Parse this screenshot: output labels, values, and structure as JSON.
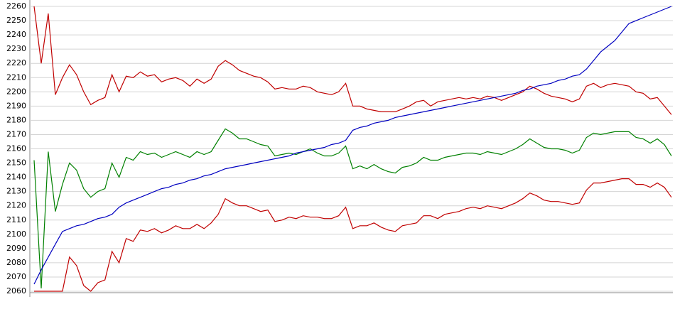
{
  "chart_data": {
    "type": "line",
    "x": [
      0,
      1,
      2,
      3,
      4,
      5,
      6,
      7,
      8,
      9,
      10,
      11,
      12,
      13,
      14,
      15,
      16,
      17,
      18,
      19,
      20,
      21,
      22,
      23,
      24,
      25,
      26,
      27,
      28,
      29,
      30,
      31,
      32,
      33,
      34,
      35,
      36,
      37,
      38,
      39,
      40,
      41,
      42,
      43,
      44,
      45,
      46,
      47,
      48,
      49,
      50,
      51,
      52,
      53,
      54,
      55,
      56,
      57,
      58,
      59,
      60,
      61,
      62,
      63,
      64,
      65,
      66,
      67,
      68,
      69,
      70,
      71,
      72,
      73,
      74,
      75,
      76,
      77,
      78,
      79,
      80,
      81,
      82,
      83,
      84,
      85,
      86,
      87,
      88,
      89,
      90
    ],
    "xlim": [
      0,
      90
    ],
    "ylim": [
      2060,
      2260
    ],
    "yticks": [
      2060,
      2070,
      2080,
      2090,
      2100,
      2110,
      2120,
      2130,
      2140,
      2150,
      2160,
      2170,
      2180,
      2190,
      2200,
      2210,
      2220,
      2230,
      2240,
      2250,
      2260
    ],
    "grid": true,
    "series": [
      {
        "color": "#c00000",
        "values": [
          2260,
          2220,
          2255,
          2198,
          2210,
          2219,
          2212,
          2200,
          2191,
          2194,
          2196,
          2212,
          2200,
          2211,
          2210,
          2214,
          2211,
          2212,
          2207,
          2209,
          2210,
          2208,
          2204,
          2209,
          2206,
          2209,
          2218,
          2222,
          2219,
          2215,
          2213,
          2211,
          2210,
          2207,
          2202,
          2203,
          2202,
          2202,
          2204,
          2203,
          2200,
          2199,
          2198,
          2200,
          2206,
          2190,
          2190,
          2188,
          2187,
          2186,
          2186,
          2186,
          2188,
          2190,
          2193,
          2194,
          2190,
          2193,
          2194,
          2195,
          2196,
          2195,
          2196,
          2195,
          2197,
          2196,
          2194,
          2196,
          2198,
          2200,
          2204,
          2202,
          2199,
          2197,
          2196,
          2195,
          2193,
          2195,
          2204,
          2206,
          2203,
          2205,
          2206,
          2205,
          2204,
          2200,
          2199,
          2195,
          2196,
          2190,
          2184
        ]
      },
      {
        "color": "#008000",
        "values": [
          2152,
          2062,
          2158,
          2116,
          2135,
          2150,
          2145,
          2132,
          2126,
          2130,
          2132,
          2150,
          2140,
          2154,
          2152,
          2158,
          2156,
          2157,
          2154,
          2156,
          2158,
          2156,
          2154,
          2158,
          2156,
          2158,
          2166,
          2174,
          2171,
          2167,
          2167,
          2165,
          2163,
          2162,
          2155,
          2156,
          2157,
          2156,
          2158,
          2160,
          2157,
          2155,
          2155,
          2157,
          2162,
          2146,
          2148,
          2146,
          2149,
          2146,
          2144,
          2143,
          2147,
          2148,
          2150,
          2154,
          2152,
          2152,
          2154,
          2155,
          2156,
          2157,
          2157,
          2156,
          2158,
          2157,
          2156,
          2158,
          2160,
          2163,
          2167,
          2164,
          2161,
          2160,
          2160,
          2159,
          2157,
          2159,
          2168,
          2171,
          2170,
          2171,
          2172,
          2172,
          2172,
          2168,
          2167,
          2164,
          2167,
          2163,
          2155
        ]
      },
      {
        "color": "#c00000",
        "values": [
          2060,
          2060,
          2060,
          2060,
          2060,
          2084,
          2078,
          2064,
          2060,
          2066,
          2068,
          2088,
          2080,
          2097,
          2095,
          2103,
          2102,
          2104,
          2101,
          2103,
          2106,
          2104,
          2104,
          2107,
          2104,
          2108,
          2114,
          2125,
          2122,
          2120,
          2120,
          2118,
          2116,
          2117,
          2109,
          2110,
          2112,
          2111,
          2113,
          2112,
          2112,
          2111,
          2111,
          2113,
          2119,
          2104,
          2106,
          2106,
          2108,
          2105,
          2103,
          2102,
          2106,
          2107,
          2108,
          2113,
          2113,
          2111,
          2114,
          2115,
          2116,
          2118,
          2119,
          2118,
          2120,
          2119,
          2118,
          2120,
          2122,
          2125,
          2129,
          2127,
          2124,
          2123,
          2123,
          2122,
          2121,
          2122,
          2131,
          2136,
          2136,
          2137,
          2138,
          2139,
          2139,
          2135,
          2135,
          2133,
          2136,
          2133,
          2126
        ]
      },
      {
        "color": "#0000c0",
        "values": [
          2065,
          2075,
          2084,
          2093,
          2102,
          2104,
          2106,
          2107,
          2109,
          2111,
          2112,
          2114,
          2119,
          2122,
          2124,
          2126,
          2128,
          2130,
          2132,
          2133,
          2135,
          2136,
          2138,
          2139,
          2141,
          2142,
          2144,
          2146,
          2147,
          2148,
          2149,
          2150,
          2151,
          2152,
          2153,
          2154,
          2155,
          2157,
          2158,
          2159,
          2160,
          2161,
          2163,
          2164,
          2166,
          2173,
          2175,
          2176,
          2178,
          2179,
          2180,
          2182,
          2183,
          2184,
          2185,
          2186,
          2187,
          2188,
          2189,
          2190,
          2191,
          2192,
          2193,
          2194,
          2195,
          2196,
          2197,
          2198,
          2199,
          2201,
          2202,
          2204,
          2205,
          2206,
          2208,
          2209,
          2211,
          2212,
          2216,
          2222,
          2228,
          2232,
          2236,
          2242,
          2248,
          2250,
          2252,
          2254,
          2256,
          2258,
          2260
        ]
      }
    ]
  }
}
